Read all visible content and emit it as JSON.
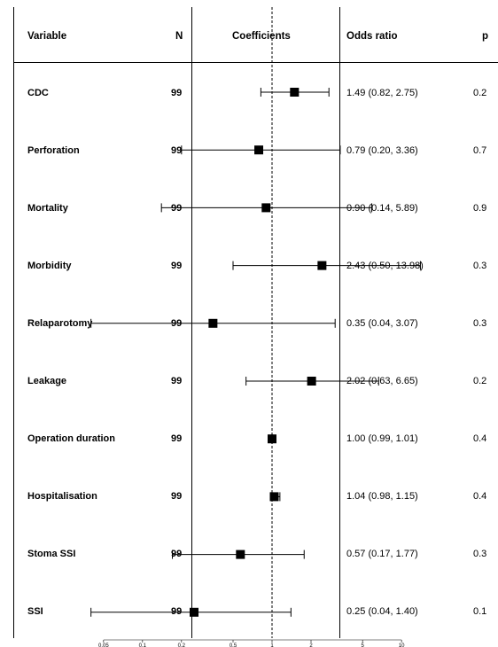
{
  "table": {
    "headers": {
      "variable": "Variable",
      "n": "N",
      "coefficients": "Coefficients",
      "odds_ratio": "Odds ratio",
      "p": "p"
    },
    "rows": [
      {
        "variable": "CDC",
        "n": "99",
        "odds_ratio": "1.49 (0.82, 2.75)",
        "p": "0.2"
      },
      {
        "variable": "Perforation",
        "n": "99",
        "odds_ratio": "0.79 (0.20, 3.36)",
        "p": "0.7"
      },
      {
        "variable": "Mortality",
        "n": "99",
        "odds_ratio": "0.90 (0.14, 5.89)",
        "p": "0.9"
      },
      {
        "variable": "Morbidity",
        "n": "99",
        "odds_ratio": "2.43 (0.50, 13.98)",
        "p": "0.3"
      },
      {
        "variable": "Relaparotomy",
        "n": "99",
        "odds_ratio": "0.35 (0.04, 3.07)",
        "p": "0.3"
      },
      {
        "variable": "Leakage",
        "n": "99",
        "odds_ratio": "2.02 (0.63, 6.65)",
        "p": "0.2"
      },
      {
        "variable": "Operation duration",
        "n": "99",
        "odds_ratio": "1.00 (0.99, 1.01)",
        "p": "0.4"
      },
      {
        "variable": "Hospitalisation",
        "n": "99",
        "odds_ratio": "1.04 (0.98, 1.15)",
        "p": "0.4"
      },
      {
        "variable": "Stoma SSI",
        "n": "99",
        "odds_ratio": "0.57 (0.17, 1.77)",
        "p": "0.3"
      },
      {
        "variable": "SSI",
        "n": "99",
        "odds_ratio": "0.25 (0.04, 1.40)",
        "p": "0.1"
      }
    ]
  },
  "chart_data": {
    "type": "forest",
    "title": "",
    "xlabel": "",
    "xscale": "log",
    "reference_line": 1,
    "reference_line_style": "dashed",
    "xticks": [
      0.05,
      0.1,
      0.2,
      0.5,
      1,
      2,
      5,
      10
    ],
    "xtick_labels": [
      "0.05",
      "0.1",
      "0.2",
      "0.5",
      "1",
      "2",
      "5",
      "10"
    ],
    "categories": [
      "CDC",
      "Perforation",
      "Mortality",
      "Morbidity",
      "Relaparotomy",
      "Leakage",
      "Operation duration",
      "Hospitalisation",
      "Stoma SSI",
      "SSI"
    ],
    "estimates": [
      1.49,
      0.79,
      0.9,
      2.43,
      0.35,
      2.02,
      1.0,
      1.04,
      0.57,
      0.25
    ],
    "lower": [
      0.82,
      0.2,
      0.14,
      0.5,
      0.04,
      0.63,
      0.99,
      0.98,
      0.17,
      0.04
    ],
    "upper": [
      2.75,
      3.36,
      5.89,
      13.98,
      3.07,
      6.65,
      1.01,
      1.15,
      1.77,
      1.4
    ],
    "marker_color": "#000000"
  }
}
